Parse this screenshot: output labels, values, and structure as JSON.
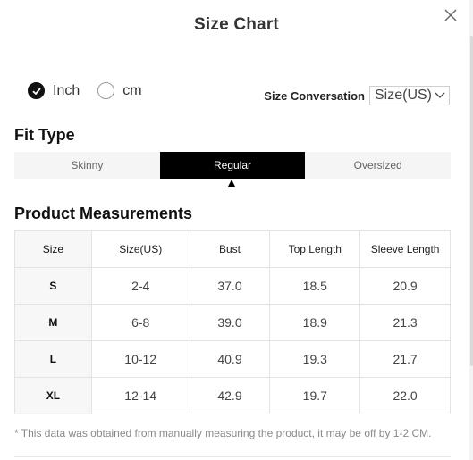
{
  "dialog": {
    "title": "Size Chart"
  },
  "units": {
    "options": [
      {
        "label": "Inch",
        "selected": true
      },
      {
        "label": "cm",
        "selected": false
      }
    ]
  },
  "conversion": {
    "label": "Size Conversation",
    "selected": "Size(US)"
  },
  "fit_type": {
    "title": "Fit Type",
    "tabs": [
      "Skinny",
      "Regular",
      "Oversized"
    ],
    "active": "Regular"
  },
  "measurements": {
    "title": "Product Measurements",
    "headers": [
      "Size",
      "Size(US)",
      "Bust",
      "Top Length",
      "Sleeve Length"
    ],
    "rows": [
      [
        "S",
        "2-4",
        "37.0",
        "18.5",
        "20.9"
      ],
      [
        "M",
        "6-8",
        "39.0",
        "18.9",
        "21.3"
      ],
      [
        "L",
        "10-12",
        "40.9",
        "19.3",
        "21.7"
      ],
      [
        "XL",
        "12-14",
        "42.9",
        "19.7",
        "22.0"
      ]
    ]
  },
  "note": "* This data was obtained from manually measuring the product, it may be off by 1-2 CM.",
  "colors": {
    "active_tab": "#000000",
    "tab_bg": "#f5f5f5"
  }
}
